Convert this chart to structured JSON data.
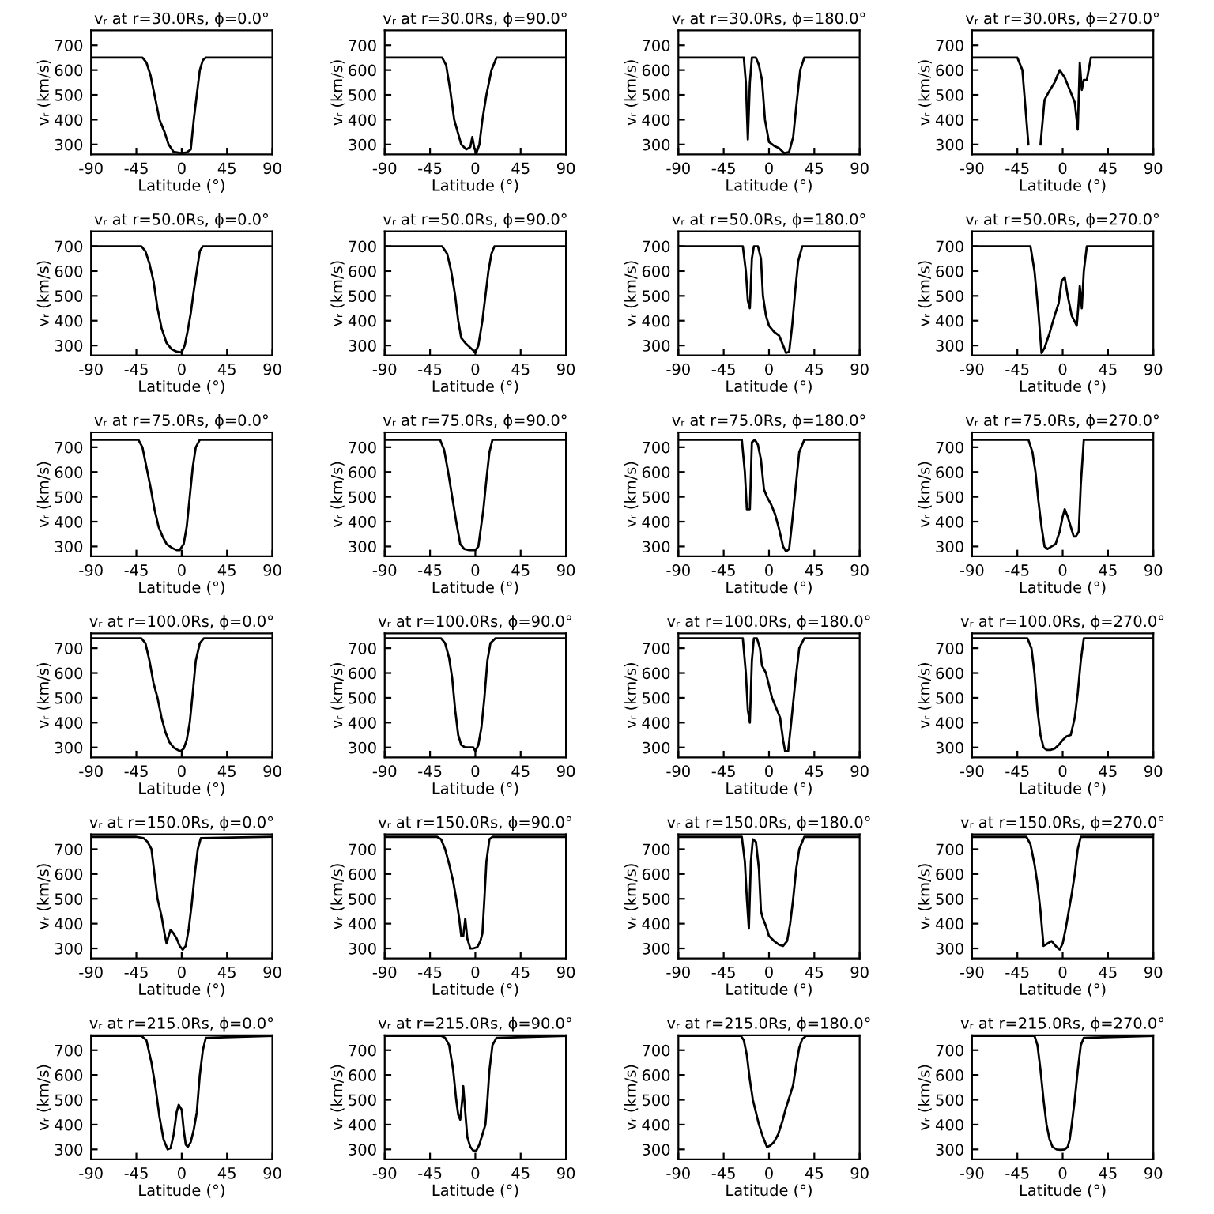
{
  "chart_data": [
    {
      "type": "line",
      "title": "vᵣ at r=30.0Rs, ϕ=0.0°",
      "xlabel": "Latitude (°)",
      "ylabel": "vᵣ (km/s)",
      "xlim": [
        -90,
        90
      ],
      "ylim": [
        260,
        760
      ],
      "xticks": [
        -90,
        -45,
        0,
        45,
        90
      ],
      "yticks": [
        300,
        400,
        500,
        600,
        700
      ],
      "series": [
        {
          "color": "#000000",
          "x": [
            -90,
            -39,
            -35,
            -31,
            -27,
            -22,
            -17,
            -13,
            -8,
            0,
            5,
            9,
            12,
            15,
            18,
            21,
            24,
            90
          ],
          "values": [
            650,
            650,
            630,
            580,
            500,
            400,
            350,
            300,
            270,
            265,
            268,
            280,
            400,
            500,
            600,
            640,
            650,
            650
          ]
        }
      ]
    },
    {
      "type": "line",
      "title": "vᵣ at r=30.0Rs, ϕ=90.0°",
      "xlabel": "Latitude (°)",
      "ylabel": "vᵣ (km/s)",
      "xlim": [
        -90,
        90
      ],
      "ylim": [
        260,
        760
      ],
      "xticks": [
        -90,
        -45,
        0,
        45,
        90
      ],
      "yticks": [
        300,
        400,
        500,
        600,
        700
      ],
      "series": [
        {
          "color": "#000000",
          "x": [
            -90,
            -33,
            -29,
            -25,
            -21,
            -14,
            -9,
            -5,
            -3,
            -1,
            1,
            4,
            7,
            11,
            16,
            21,
            90
          ],
          "values": [
            650,
            650,
            620,
            520,
            400,
            300,
            280,
            290,
            330,
            285,
            265,
            300,
            400,
            500,
            600,
            650,
            650
          ]
        }
      ]
    },
    {
      "type": "line",
      "title": "vᵣ at r=30.0Rs, ϕ=180.0°",
      "xlabel": "Latitude (°)",
      "ylabel": "vᵣ (km/s)",
      "xlim": [
        -90,
        90
      ],
      "ylim": [
        260,
        760
      ],
      "xticks": [
        -90,
        -45,
        0,
        45,
        90
      ],
      "yticks": [
        300,
        400,
        500,
        600,
        700
      ],
      "series": [
        {
          "color": "#000000",
          "x": [
            -90,
            -25,
            -23,
            -21,
            -19,
            -17,
            -13,
            -10,
            -7,
            -4,
            0,
            5,
            10,
            15,
            20,
            24,
            27,
            31,
            35,
            90
          ],
          "values": [
            650,
            650,
            550,
            320,
            550,
            650,
            650,
            620,
            560,
            400,
            310,
            295,
            285,
            265,
            270,
            330,
            450,
            600,
            650,
            650
          ]
        }
      ]
    },
    {
      "type": "line",
      "title": "vᵣ at r=30.0Rs, ϕ=270.0°",
      "xlabel": "Latitude (°)",
      "ylabel": "vᵣ (km/s)",
      "xlim": [
        -90,
        90
      ],
      "ylim": [
        260,
        760
      ],
      "xticks": [
        -90,
        -45,
        0,
        45,
        90
      ],
      "yticks": [
        300,
        400,
        500,
        600,
        700
      ],
      "series": [
        {
          "color": "#000000",
          "x": [
            -90,
            -45,
            -40,
            -37,
            -34,
            -30,
            -26,
            -22,
            -18,
            -14,
            -8,
            -3,
            2,
            7,
            12,
            15,
            17,
            19,
            21,
            24,
            28,
            90
          ],
          "values": [
            650,
            650,
            600,
            450,
            300,
            null,
            null,
            300,
            480,
            510,
            550,
            600,
            570,
            520,
            470,
            360,
            630,
            520,
            560,
            560,
            650,
            650
          ]
        }
      ]
    },
    {
      "type": "line",
      "title": "vᵣ at r=50.0Rs, ϕ=0.0°",
      "xlabel": "Latitude (°)",
      "ylabel": "vᵣ (km/s)",
      "xlim": [
        -90,
        90
      ],
      "ylim": [
        260,
        760
      ],
      "xticks": [
        -90,
        -45,
        0,
        45,
        90
      ],
      "yticks": [
        300,
        400,
        500,
        600,
        700
      ],
      "series": [
        {
          "color": "#000000",
          "x": [
            -90,
            -40,
            -36,
            -32,
            -28,
            -24,
            -20,
            -15,
            -10,
            -5,
            0,
            3,
            6,
            9,
            12,
            15,
            18,
            21,
            90
          ],
          "values": [
            700,
            700,
            680,
            630,
            560,
            450,
            370,
            310,
            285,
            275,
            272,
            300,
            360,
            430,
            520,
            600,
            680,
            700,
            700
          ]
        }
      ]
    },
    {
      "type": "line",
      "title": "vᵣ at r=50.0Rs, ϕ=90.0°",
      "xlabel": "Latitude (°)",
      "ylabel": "vᵣ (km/s)",
      "xlim": [
        -90,
        90
      ],
      "ylim": [
        260,
        760
      ],
      "xticks": [
        -90,
        -45,
        0,
        45,
        90
      ],
      "yticks": [
        300,
        400,
        500,
        600,
        700
      ],
      "series": [
        {
          "color": "#000000",
          "x": [
            -90,
            -33,
            -28,
            -24,
            -20,
            -17,
            -14,
            -10,
            -6,
            -2,
            0,
            3,
            7,
            10,
            13,
            16,
            19,
            90
          ],
          "values": [
            700,
            700,
            670,
            600,
            500,
            400,
            330,
            310,
            295,
            280,
            272,
            300,
            400,
            500,
            600,
            670,
            700,
            700
          ]
        }
      ]
    },
    {
      "type": "line",
      "title": "vᵣ at r=50.0Rs, ϕ=180.0°",
      "xlabel": "Latitude (°)",
      "ylabel": "vᵣ (km/s)",
      "xlim": [
        -90,
        90
      ],
      "ylim": [
        260,
        760
      ],
      "xticks": [
        -90,
        -45,
        0,
        45,
        90
      ],
      "yticks": [
        300,
        400,
        500,
        600,
        700
      ],
      "series": [
        {
          "color": "#000000",
          "x": [
            -90,
            -26,
            -23,
            -21,
            -19,
            -17,
            -15,
            -11,
            -8,
            -6,
            -3,
            0,
            5,
            10,
            14,
            17,
            20,
            23,
            26,
            29,
            33,
            90
          ],
          "values": [
            700,
            700,
            600,
            480,
            450,
            650,
            700,
            700,
            650,
            500,
            420,
            380,
            355,
            340,
            300,
            270,
            275,
            380,
            520,
            640,
            700,
            700
          ]
        }
      ]
    },
    {
      "type": "line",
      "title": "vᵣ at r=50.0Rs, ϕ=270.0°",
      "xlabel": "Latitude (°)",
      "ylabel": "vᵣ (km/s)",
      "xlim": [
        -90,
        90
      ],
      "ylim": [
        260,
        760
      ],
      "xticks": [
        -90,
        -45,
        0,
        45,
        90
      ],
      "yticks": [
        300,
        400,
        500,
        600,
        700
      ],
      "series": [
        {
          "color": "#000000",
          "x": [
            -90,
            -32,
            -28,
            -24,
            -21,
            -18,
            -13,
            -8,
            -4,
            -1,
            2,
            5,
            9,
            14,
            16,
            17,
            19,
            21,
            24,
            90
          ],
          "values": [
            700,
            700,
            600,
            430,
            270,
            290,
            350,
            420,
            470,
            560,
            575,
            500,
            420,
            380,
            480,
            540,
            450,
            600,
            700,
            700
          ]
        }
      ]
    },
    {
      "type": "line",
      "title": "vᵣ at r=75.0Rs, ϕ=0.0°",
      "xlabel": "Latitude (°)",
      "ylabel": "vᵣ (km/s)",
      "xlim": [
        -90,
        90
      ],
      "ylim": [
        260,
        760
      ],
      "xticks": [
        -90,
        -45,
        0,
        45,
        90
      ],
      "yticks": [
        300,
        400,
        500,
        600,
        700
      ],
      "series": [
        {
          "color": "#000000",
          "x": [
            -90,
            -43,
            -39,
            -35,
            -31,
            -27,
            -23,
            -19,
            -15,
            -10,
            -5,
            -2,
            2,
            5,
            8,
            11,
            14,
            18,
            90
          ],
          "values": [
            730,
            730,
            700,
            620,
            540,
            450,
            380,
            340,
            310,
            295,
            285,
            285,
            310,
            380,
            500,
            620,
            700,
            730,
            730
          ]
        }
      ]
    },
    {
      "type": "line",
      "title": "vᵣ at r=75.0Rs, ϕ=90.0°",
      "xlabel": "Latitude (°)",
      "ylabel": "vᵣ (km/s)",
      "xlim": [
        -90,
        90
      ],
      "ylim": [
        260,
        760
      ],
      "xticks": [
        -90,
        -45,
        0,
        45,
        90
      ],
      "yticks": [
        300,
        400,
        500,
        600,
        700
      ],
      "series": [
        {
          "color": "#000000",
          "x": [
            -90,
            -35,
            -31,
            -27,
            -23,
            -19,
            -15,
            -11,
            -6,
            0,
            3,
            5,
            8,
            11,
            14,
            17,
            90
          ],
          "values": [
            730,
            730,
            690,
            600,
            500,
            400,
            310,
            290,
            285,
            285,
            300,
            360,
            450,
            570,
            680,
            730,
            730
          ]
        }
      ]
    },
    {
      "type": "line",
      "title": "vᵣ at r=75.0Rs, ϕ=180.0°",
      "xlabel": "Latitude (°)",
      "ylabel": "vᵣ (km/s)",
      "xlim": [
        -90,
        90
      ],
      "ylim": [
        260,
        760
      ],
      "xticks": [
        -90,
        -45,
        0,
        45,
        90
      ],
      "yticks": [
        300,
        400,
        500,
        600,
        700
      ],
      "series": [
        {
          "color": "#000000",
          "x": [
            -90,
            -27,
            -24,
            -22,
            -19,
            -17,
            -14,
            -11,
            -8,
            -5,
            -2,
            2,
            6,
            10,
            14,
            17,
            20,
            23,
            26,
            30,
            35,
            90
          ],
          "values": [
            730,
            730,
            600,
            450,
            450,
            720,
            730,
            710,
            650,
            530,
            500,
            470,
            430,
            370,
            300,
            280,
            290,
            400,
            520,
            680,
            730,
            730
          ]
        }
      ]
    },
    {
      "type": "line",
      "title": "vᵣ at r=75.0Rs, ϕ=270.0°",
      "xlabel": "Latitude (°)",
      "ylabel": "vᵣ (km/s)",
      "xlim": [
        -90,
        90
      ],
      "ylim": [
        260,
        760
      ],
      "xticks": [
        -90,
        -45,
        0,
        45,
        90
      ],
      "yticks": [
        300,
        400,
        500,
        600,
        700
      ],
      "series": [
        {
          "color": "#000000",
          "x": [
            -90,
            -34,
            -30,
            -27,
            -24,
            -21,
            -18,
            -15,
            -11,
            -7,
            -3,
            0,
            2,
            5,
            8,
            11,
            13,
            16,
            18,
            21,
            90
          ],
          "values": [
            730,
            730,
            680,
            600,
            480,
            380,
            300,
            290,
            300,
            310,
            360,
            420,
            450,
            420,
            380,
            340,
            340,
            360,
            550,
            730,
            730
          ]
        }
      ]
    },
    {
      "type": "line",
      "title": "vᵣ at r=100.0Rs, ϕ=0.0°",
      "xlabel": "Latitude (°)",
      "ylabel": "vᵣ (km/s)",
      "xlim": [
        -90,
        90
      ],
      "ylim": [
        260,
        760
      ],
      "xticks": [
        -90,
        -45,
        0,
        45,
        90
      ],
      "yticks": [
        300,
        400,
        500,
        600,
        700
      ],
      "series": [
        {
          "color": "#000000",
          "x": [
            -90,
            -40,
            -36,
            -32,
            -28,
            -24,
            -20,
            -16,
            -12,
            -8,
            -4,
            -1,
            2,
            5,
            8,
            11,
            14,
            18,
            22,
            90
          ],
          "values": [
            740,
            740,
            720,
            650,
            560,
            500,
            420,
            360,
            320,
            300,
            290,
            285,
            295,
            330,
            400,
            520,
            650,
            720,
            740,
            740
          ]
        }
      ]
    },
    {
      "type": "line",
      "title": "vᵣ at r=100.0Rs, ϕ=90.0°",
      "xlabel": "Latitude (°)",
      "ylabel": "vᵣ (km/s)",
      "xlim": [
        -90,
        90
      ],
      "ylim": [
        260,
        760
      ],
      "xticks": [
        -90,
        -45,
        0,
        45,
        90
      ],
      "yticks": [
        300,
        400,
        500,
        600,
        700
      ],
      "series": [
        {
          "color": "#000000",
          "x": [
            -90,
            -34,
            -30,
            -26,
            -23,
            -20,
            -17,
            -14,
            -10,
            -5,
            -2,
            0,
            3,
            6,
            9,
            12,
            15,
            20,
            90
          ],
          "values": [
            740,
            740,
            720,
            660,
            580,
            450,
            350,
            310,
            300,
            300,
            300,
            285,
            310,
            380,
            500,
            650,
            720,
            740,
            740
          ]
        }
      ]
    },
    {
      "type": "line",
      "title": "vᵣ at r=100.0Rs, ϕ=180.0°",
      "xlabel": "Latitude (°)",
      "ylabel": "vᵣ (km/s)",
      "xlim": [
        -90,
        90
      ],
      "ylim": [
        260,
        760
      ],
      "xticks": [
        -90,
        -45,
        0,
        45,
        90
      ],
      "yticks": [
        300,
        400,
        500,
        600,
        700
      ],
      "series": [
        {
          "color": "#000000",
          "x": [
            -90,
            -26,
            -23,
            -21,
            -19,
            -17,
            -15,
            -12,
            -9,
            -7,
            -3,
            0,
            3,
            7,
            11,
            14,
            16,
            19,
            22,
            26,
            30,
            35,
            90
          ],
          "values": [
            740,
            740,
            600,
            450,
            400,
            650,
            740,
            740,
            700,
            630,
            600,
            550,
            500,
            460,
            420,
            330,
            285,
            285,
            400,
            560,
            700,
            740,
            740
          ]
        }
      ]
    },
    {
      "type": "line",
      "title": "vᵣ at r=100.0Rs, ϕ=270.0°",
      "xlabel": "Latitude (°)",
      "ylabel": "vᵣ (km/s)",
      "xlim": [
        -90,
        90
      ],
      "ylim": [
        260,
        760
      ],
      "xticks": [
        -90,
        -45,
        0,
        45,
        90
      ],
      "yticks": [
        300,
        400,
        500,
        600,
        700
      ],
      "series": [
        {
          "color": "#000000",
          "x": [
            -90,
            -35,
            -31,
            -28,
            -25,
            -22,
            -19,
            -16,
            -12,
            -8,
            -4,
            0,
            4,
            8,
            12,
            15,
            18,
            21,
            90
          ],
          "values": [
            740,
            740,
            700,
            600,
            450,
            350,
            300,
            290,
            290,
            295,
            310,
            330,
            345,
            350,
            420,
            520,
            650,
            740,
            740
          ]
        }
      ]
    },
    {
      "type": "line",
      "title": "vᵣ at r=150.0Rs, ϕ=0.0°",
      "xlabel": "Latitude (°)",
      "ylabel": "vᵣ (km/s)",
      "xlim": [
        -90,
        90
      ],
      "ylim": [
        260,
        760
      ],
      "xticks": [
        -90,
        -45,
        0,
        45,
        90
      ],
      "yticks": [
        300,
        400,
        500,
        600,
        700
      ],
      "series": [
        {
          "color": "#000000",
          "x": [
            -90,
            -45,
            -38,
            -34,
            -30,
            -27,
            -24,
            -20,
            -17,
            -15,
            -13,
            -11,
            -8,
            -5,
            -2,
            1,
            4,
            7,
            10,
            13,
            16,
            19,
            90
          ],
          "values": [
            750,
            750,
            745,
            730,
            700,
            600,
            500,
            430,
            360,
            320,
            350,
            375,
            360,
            340,
            310,
            295,
            310,
            380,
            480,
            600,
            700,
            745,
            750
          ]
        }
      ]
    },
    {
      "type": "line",
      "title": "vᵣ at r=150.0Rs, ϕ=90.0°",
      "xlabel": "Latitude (°)",
      "ylabel": "vᵣ (km/s)",
      "xlim": [
        -90,
        90
      ],
      "ylim": [
        260,
        760
      ],
      "xticks": [
        -90,
        -45,
        0,
        45,
        90
      ],
      "yticks": [
        300,
        400,
        500,
        600,
        700
      ],
      "series": [
        {
          "color": "#000000",
          "x": [
            -90,
            -38,
            -34,
            -30,
            -26,
            -22,
            -19,
            -16,
            -14,
            -12,
            -10,
            -8,
            -5,
            -2,
            2,
            5,
            7,
            9,
            11,
            14,
            17,
            90
          ],
          "values": [
            750,
            750,
            740,
            700,
            640,
            570,
            500,
            420,
            350,
            350,
            420,
            340,
            300,
            300,
            305,
            330,
            360,
            500,
            650,
            740,
            750,
            750
          ]
        }
      ]
    },
    {
      "type": "line",
      "title": "vᵣ at r=150.0Rs, ϕ=180.0°",
      "xlabel": "Latitude (°)",
      "ylabel": "vᵣ (km/s)",
      "xlim": [
        -90,
        90
      ],
      "ylim": [
        260,
        760
      ],
      "xticks": [
        -90,
        -45,
        0,
        45,
        90
      ],
      "yticks": [
        300,
        400,
        500,
        600,
        700
      ],
      "series": [
        {
          "color": "#000000",
          "x": [
            -90,
            -27,
            -24,
            -22,
            -20,
            -18,
            -16,
            -13,
            -10,
            -8,
            -6,
            -3,
            0,
            5,
            10,
            14,
            18,
            21,
            24,
            27,
            30,
            35,
            90
          ],
          "values": [
            750,
            750,
            650,
            500,
            380,
            650,
            740,
            730,
            620,
            450,
            420,
            390,
            350,
            330,
            315,
            310,
            330,
            400,
            500,
            620,
            700,
            750,
            750
          ]
        }
      ]
    },
    {
      "type": "line",
      "title": "vᵣ at r=150.0Rs, ϕ=270.0°",
      "xlabel": "Latitude (°)",
      "ylabel": "vᵣ (km/s)",
      "xlim": [
        -90,
        90
      ],
      "ylim": [
        260,
        760
      ],
      "xticks": [
        -90,
        -45,
        0,
        45,
        90
      ],
      "yticks": [
        300,
        400,
        500,
        600,
        700
      ],
      "series": [
        {
          "color": "#000000",
          "x": [
            -90,
            -36,
            -32,
            -28,
            -25,
            -22,
            -19,
            -15,
            -11,
            -7,
            -3,
            0,
            3,
            6,
            9,
            12,
            15,
            18,
            90
          ],
          "values": [
            750,
            750,
            720,
            640,
            560,
            450,
            310,
            320,
            330,
            310,
            295,
            320,
            380,
            450,
            520,
            600,
            700,
            750,
            750
          ]
        }
      ]
    },
    {
      "type": "line",
      "title": "vᵣ at r=215.0Rs, ϕ=0.0°",
      "xlabel": "Latitude (°)",
      "ylabel": "vᵣ (km/s)",
      "xlim": [
        -90,
        90
      ],
      "ylim": [
        260,
        760
      ],
      "xticks": [
        -90,
        -45,
        0,
        45,
        90
      ],
      "yticks": [
        300,
        400,
        500,
        600,
        700
      ],
      "series": [
        {
          "color": "#000000",
          "x": [
            -90,
            -40,
            -35,
            -30,
            -26,
            -22,
            -18,
            -14,
            -11,
            -8,
            -5,
            -3,
            0,
            2,
            4,
            6,
            9,
            12,
            15,
            18,
            21,
            24,
            90
          ],
          "values": [
            758,
            758,
            740,
            650,
            550,
            430,
            340,
            300,
            305,
            360,
            450,
            480,
            460,
            380,
            320,
            310,
            330,
            380,
            450,
            600,
            700,
            750,
            758
          ]
        }
      ]
    },
    {
      "type": "line",
      "title": "vᵣ at r=215.0Rs, ϕ=90.0°",
      "xlabel": "Latitude (°)",
      "ylabel": "vᵣ (km/s)",
      "xlim": [
        -90,
        90
      ],
      "ylim": [
        260,
        760
      ],
      "xticks": [
        -90,
        -45,
        0,
        45,
        90
      ],
      "yticks": [
        300,
        400,
        500,
        600,
        700
      ],
      "series": [
        {
          "color": "#000000",
          "x": [
            -90,
            -34,
            -30,
            -26,
            -22,
            -19,
            -17,
            -15,
            -13,
            -12,
            -10,
            -8,
            -5,
            -2,
            1,
            4,
            7,
            10,
            12,
            14,
            17,
            21,
            90
          ],
          "values": [
            758,
            758,
            750,
            720,
            620,
            500,
            440,
            420,
            500,
            555,
            450,
            350,
            310,
            295,
            295,
            320,
            360,
            400,
            500,
            620,
            720,
            750,
            758
          ]
        }
      ]
    },
    {
      "type": "line",
      "title": "vᵣ at r=215.0Rs, ϕ=180.0°",
      "xlabel": "Latitude (°)",
      "ylabel": "vᵣ (km/s)",
      "xlim": [
        -90,
        90
      ],
      "ylim": [
        260,
        760
      ],
      "xticks": [
        -90,
        -45,
        0,
        45,
        90
      ],
      "yticks": [
        300,
        400,
        500,
        600,
        700
      ],
      "series": [
        {
          "color": "#000000",
          "x": [
            -90,
            -28,
            -25,
            -22,
            -19,
            -16,
            -13,
            -10,
            -6,
            -2,
            1,
            5,
            9,
            13,
            17,
            21,
            24,
            27,
            30,
            33,
            37,
            90
          ],
          "values": [
            758,
            758,
            740,
            680,
            580,
            500,
            450,
            400,
            350,
            310,
            315,
            330,
            360,
            410,
            470,
            520,
            560,
            640,
            710,
            745,
            758,
            758
          ]
        }
      ]
    },
    {
      "type": "line",
      "title": "vᵣ at r=215.0Rs, ϕ=270.0°",
      "xlabel": "Latitude (°)",
      "ylabel": "vᵣ (km/s)",
      "xlim": [
        -90,
        90
      ],
      "ylim": [
        260,
        760
      ],
      "xticks": [
        -90,
        -45,
        0,
        45,
        90
      ],
      "yticks": [
        300,
        400,
        500,
        600,
        700
      ],
      "series": [
        {
          "color": "#000000",
          "x": [
            -90,
            -28,
            -25,
            -22,
            -19,
            -16,
            -13,
            -10,
            -6,
            -2,
            2,
            5,
            7,
            9,
            12,
            15,
            18,
            21,
            90
          ],
          "values": [
            758,
            758,
            720,
            620,
            500,
            400,
            340,
            310,
            300,
            298,
            300,
            310,
            340,
            400,
            500,
            620,
            720,
            750,
            758
          ]
        }
      ]
    }
  ]
}
